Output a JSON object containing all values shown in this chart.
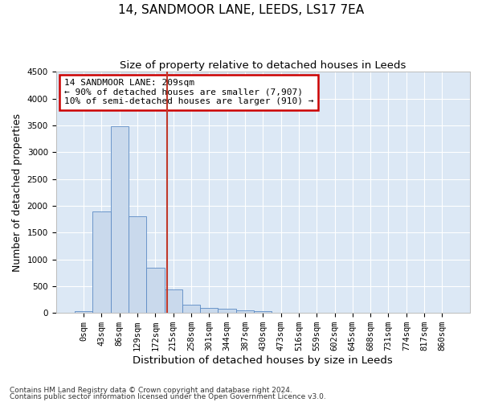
{
  "title": "14, SANDMOOR LANE, LEEDS, LS17 7EA",
  "subtitle": "Size of property relative to detached houses in Leeds",
  "xlabel": "Distribution of detached houses by size in Leeds",
  "ylabel": "Number of detached properties",
  "bar_labels": [
    "0sqm",
    "43sqm",
    "86sqm",
    "129sqm",
    "172sqm",
    "215sqm",
    "258sqm",
    "301sqm",
    "344sqm",
    "387sqm",
    "430sqm",
    "473sqm",
    "516sqm",
    "559sqm",
    "602sqm",
    "645sqm",
    "688sqm",
    "731sqm",
    "774sqm",
    "817sqm",
    "860sqm"
  ],
  "bar_values": [
    30,
    1900,
    3480,
    1800,
    850,
    440,
    155,
    100,
    75,
    55,
    40,
    10,
    5,
    3,
    2,
    1,
    1,
    0,
    0,
    0,
    0
  ],
  "bar_color": "#c9d9ec",
  "bar_edge_color": "#5b8ac4",
  "vline_x": 4.65,
  "vline_color": "#c0392b",
  "ylim": [
    0,
    4500
  ],
  "yticks": [
    0,
    500,
    1000,
    1500,
    2000,
    2500,
    3000,
    3500,
    4000,
    4500
  ],
  "annotation_text": "14 SANDMOOR LANE: 209sqm\n← 90% of detached houses are smaller (7,907)\n10% of semi-detached houses are larger (910) →",
  "annotation_box_color": "#cc0000",
  "footnote1": "Contains HM Land Registry data © Crown copyright and database right 2024.",
  "footnote2": "Contains public sector information licensed under the Open Government Licence v3.0.",
  "background_color": "#dce8f5",
  "fig_background_color": "#ffffff",
  "grid_color": "#ffffff",
  "title_fontsize": 11,
  "subtitle_fontsize": 9.5,
  "label_fontsize": 9,
  "tick_fontsize": 7.5,
  "annotation_fontsize": 8,
  "footnote_fontsize": 6.5
}
